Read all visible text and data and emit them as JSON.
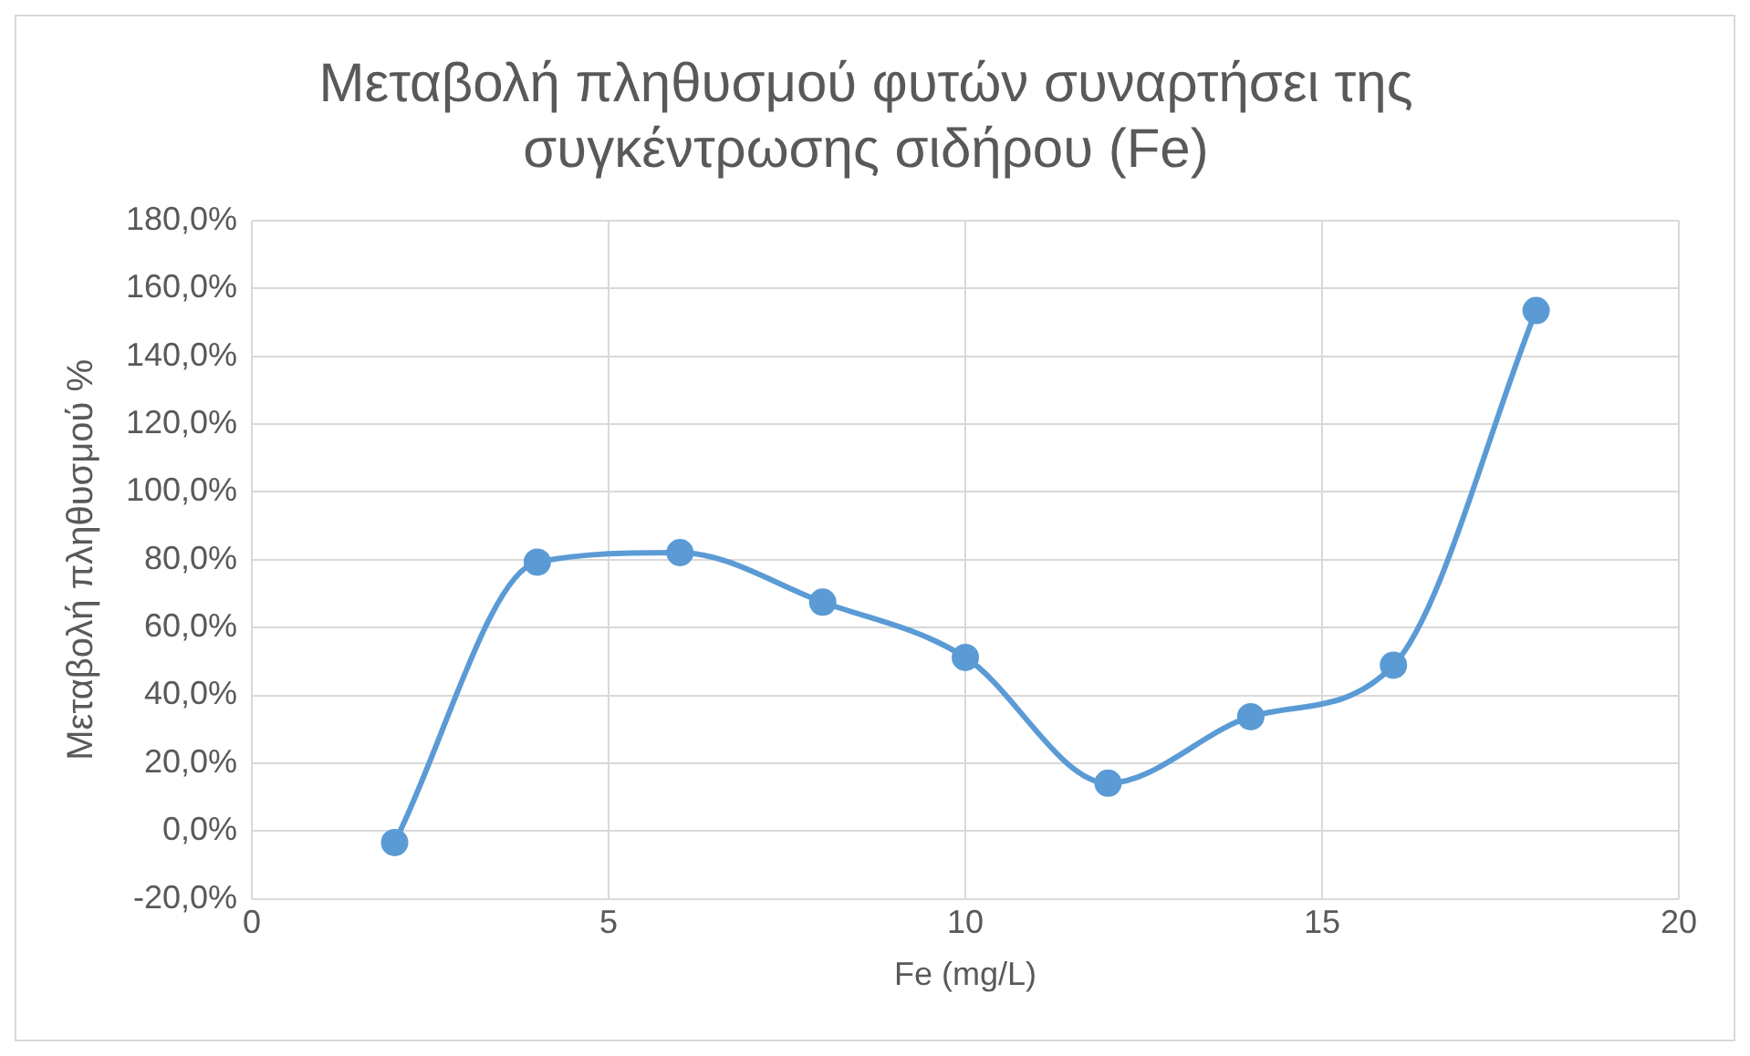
{
  "chart_data": {
    "type": "line",
    "title": "Μεταβολή πληθυσμού φυτών συναρτήσει της συγκέντρωσης σιδήρου (Fe)",
    "xlabel": "Fe (mg/L)",
    "ylabel": "Μεταβολή πληθυσμού %",
    "x": [
      2,
      4,
      6,
      8,
      10,
      12,
      14,
      16,
      18
    ],
    "series": [
      {
        "color": "#5b9bd5",
        "values": [
          -3.4,
          79.3,
          82.1,
          67.5,
          51.2,
          14.1,
          33.7,
          48.9,
          153.5
        ]
      }
    ],
    "xlim": [
      0,
      20
    ],
    "xticks": [
      0,
      5,
      10,
      15,
      20
    ],
    "ylim": [
      -20,
      180
    ],
    "yticks": [
      {
        "value": -20,
        "label": "-20,0%"
      },
      {
        "value": 0,
        "label": "0,0%"
      },
      {
        "value": 20,
        "label": "20,0%"
      },
      {
        "value": 40,
        "label": "40,0%"
      },
      {
        "value": 60,
        "label": "60,0%"
      },
      {
        "value": 80,
        "label": "80,0%"
      },
      {
        "value": 100,
        "label": "100,0%"
      },
      {
        "value": 120,
        "label": "120,0%"
      },
      {
        "value": 140,
        "label": "140,0%"
      },
      {
        "value": 160,
        "label": "160,0%"
      },
      {
        "value": 180,
        "label": "180,0%"
      }
    ],
    "grid": true,
    "legend": false,
    "marker": "circle",
    "line_style": "solid"
  }
}
